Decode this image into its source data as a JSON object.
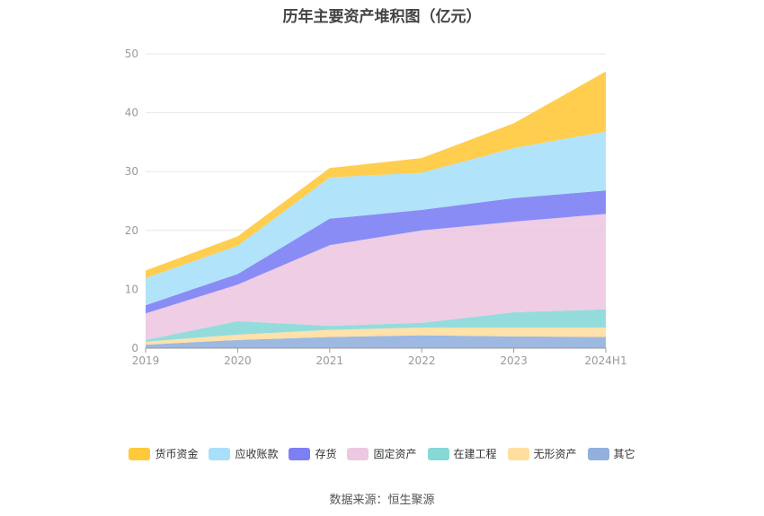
{
  "chart_data": {
    "type": "area",
    "stacked": true,
    "title": "历年主要资产堆积图（亿元）",
    "x": [
      "2019",
      "2020",
      "2021",
      "2022",
      "2023",
      "2024H1"
    ],
    "ylim": [
      0,
      50
    ],
    "yticks": [
      0,
      10,
      20,
      30,
      40,
      50
    ],
    "grid": true,
    "legend_position": "bottom",
    "series": [
      {
        "name": "其它",
        "color": "#92b0de",
        "values": [
          0.6,
          1.4,
          1.9,
          2.2,
          2.0,
          1.9
        ]
      },
      {
        "name": "无形资产",
        "color": "#ffdea0",
        "values": [
          0.5,
          0.9,
          1.2,
          1.3,
          1.5,
          1.6
        ]
      },
      {
        "name": "在建工程",
        "color": "#88d8d8",
        "values": [
          0.3,
          2.3,
          0.7,
          0.8,
          2.6,
          3.1
        ]
      },
      {
        "name": "固定资产",
        "color": "#ecc8e2",
        "values": [
          4.5,
          6.2,
          13.7,
          15.7,
          15.4,
          16.2
        ]
      },
      {
        "name": "存货",
        "color": "#7d7ff5",
        "values": [
          1.4,
          1.8,
          4.5,
          3.5,
          4.0,
          4.0
        ]
      },
      {
        "name": "应收账款",
        "color": "#a8e0fa",
        "values": [
          4.6,
          4.8,
          7.0,
          6.3,
          8.5,
          10.0
        ]
      },
      {
        "name": "货币资金",
        "color": "#ffc93c",
        "values": [
          1.3,
          1.6,
          1.6,
          2.5,
          4.2,
          10.2
        ]
      }
    ],
    "legend_order": [
      "货币资金",
      "应收账款",
      "存货",
      "固定资产",
      "在建工程",
      "无形资产",
      "其它"
    ]
  },
  "footer": {
    "source": "数据来源：恒生聚源"
  }
}
